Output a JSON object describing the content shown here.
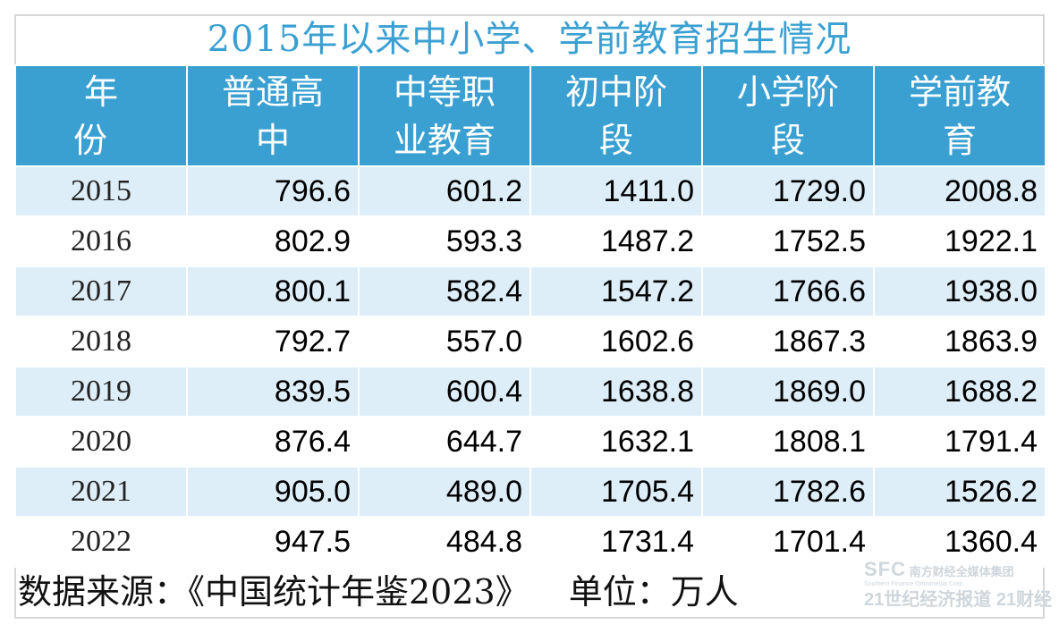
{
  "title": "2015年以来中小学、学前教育招生情况",
  "chart_data": {
    "type": "table",
    "columns": [
      [
        "年 份"
      ],
      [
        "普通高",
        "中"
      ],
      [
        "中等职",
        "业教育"
      ],
      [
        "初中阶",
        "段"
      ],
      [
        "小学阶",
        "段"
      ],
      [
        "学前教",
        "育"
      ]
    ],
    "rows": [
      [
        "2015",
        "796.6",
        "601.2",
        "1411.0",
        "1729.0",
        "2008.8"
      ],
      [
        "2016",
        "802.9",
        "593.3",
        "1487.2",
        "1752.5",
        "1922.1"
      ],
      [
        "2017",
        "800.1",
        "582.4",
        "1547.2",
        "1766.6",
        "1938.0"
      ],
      [
        "2018",
        "792.7",
        "557.0",
        "1602.6",
        "1867.3",
        "1863.9"
      ],
      [
        "2019",
        "839.5",
        "600.4",
        "1638.8",
        "1869.0",
        "1688.2"
      ],
      [
        "2020",
        "876.4",
        "644.7",
        "1632.1",
        "1808.1",
        "1791.4"
      ],
      [
        "2021",
        "905.0",
        "489.0",
        "1705.4",
        "1782.6",
        "1526.2"
      ],
      [
        "2022",
        "947.5",
        "484.8",
        "1731.4",
        "1701.4",
        "1360.4"
      ]
    ]
  },
  "footer": {
    "source": "数据来源：《中国统计年鉴2023》",
    "unit": "单位：万人"
  },
  "watermark": {
    "sfc": "SFC",
    "group": "南方财经全媒体集团",
    "group_en": "Southern Finance Omnimedia Corp.",
    "brand1": "21世纪经济报道",
    "brand2": "21财经"
  },
  "colors": {
    "header_bg": "#3aa0d2",
    "title_text": "#3aa0d2",
    "row_alt_bg": "#ddeef8"
  }
}
